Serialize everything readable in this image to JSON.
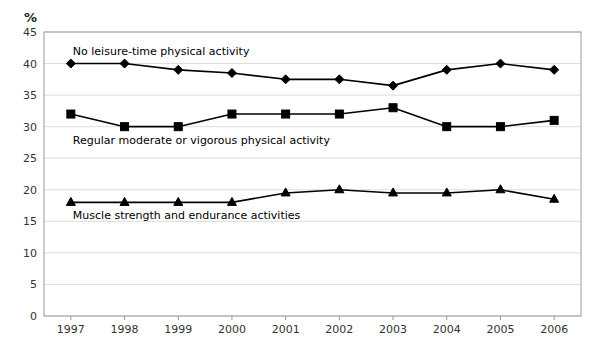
{
  "chart_data": {
    "type": "line",
    "y_label": "%",
    "x": [
      1997,
      1998,
      1999,
      2000,
      2001,
      2002,
      2003,
      2004,
      2005,
      2006
    ],
    "series": [
      {
        "name": "No leisure-time physical activity",
        "color": "#000000",
        "marker": "diamond",
        "values": [
          40,
          40,
          39,
          38.5,
          37.5,
          37.5,
          36.5,
          39,
          40,
          39
        ]
      },
      {
        "name": "Regular moderate or vigorous physical activity",
        "color": "#000000",
        "marker": "square",
        "values": [
          32,
          30,
          30,
          32,
          32,
          32,
          33,
          30,
          30,
          31
        ]
      },
      {
        "name": "Muscle strength and endurance activities",
        "color": "#000000",
        "marker": "triangle",
        "values": [
          18,
          18,
          18,
          18,
          19.5,
          20,
          19.5,
          19.5,
          20,
          18.5
        ]
      }
    ],
    "xlim": [
      1996.5,
      2006.5
    ],
    "xticks": [
      1997,
      1998,
      1999,
      2000,
      2001,
      2002,
      2003,
      2004,
      2005,
      2006
    ],
    "ylim": [
      0,
      45
    ],
    "yticks": [
      0,
      5,
      10,
      15,
      20,
      25,
      30,
      35,
      40,
      45
    ],
    "grid": true
  }
}
